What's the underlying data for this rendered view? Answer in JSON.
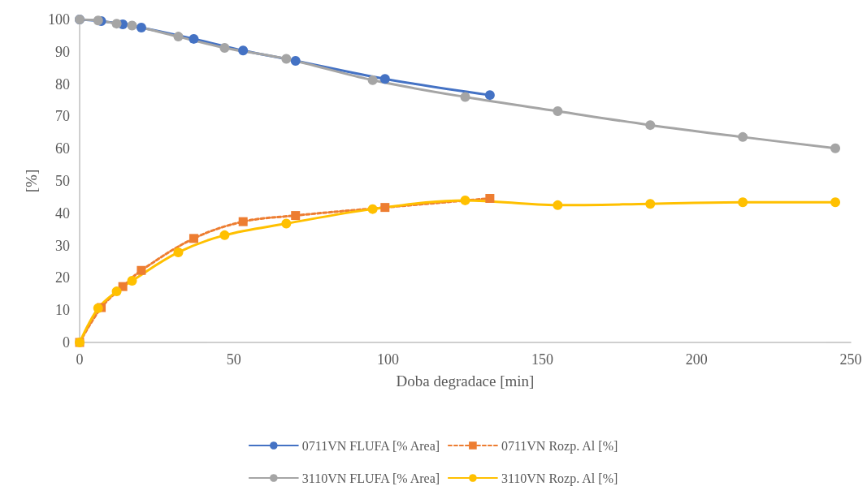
{
  "chart_data": {
    "type": "line",
    "xlabel": "Doba degradace [min]",
    "ylabel": "[%]",
    "xlim": [
      0,
      250
    ],
    "xticks": [
      0,
      50,
      100,
      150,
      200,
      250
    ],
    "ylim": [
      0,
      100
    ],
    "yticks": [
      0,
      10,
      20,
      30,
      40,
      50,
      60,
      70,
      80,
      90,
      100
    ],
    "grid": false,
    "legend": "bottom",
    "series": [
      {
        "name": "0711VN FLUFA [% Area]",
        "color": "#4472c4",
        "marker": "circle",
        "line_style": "solid",
        "x": [
          0,
          7,
          14,
          20,
          37,
          53,
          70,
          99,
          133
        ],
        "values": [
          100,
          99.5,
          98.5,
          97.5,
          94,
          90.4,
          87.2,
          81.6,
          76.6
        ]
      },
      {
        "name": "0711VN Rozp. Al [%]",
        "color": "#ed7d31",
        "marker": "square",
        "line_style": "dashed",
        "x": [
          0,
          7,
          14,
          20,
          37,
          53,
          70,
          99,
          133
        ],
        "values": [
          0,
          10.8,
          17.3,
          22.3,
          32.2,
          37.4,
          39.3,
          41.8,
          44.6
        ]
      },
      {
        "name": "3110VN FLUFA [% Area]",
        "color": "#a5a5a5",
        "marker": "circle",
        "line_style": "solid",
        "x": [
          0,
          6,
          12,
          17,
          32,
          47,
          67,
          95,
          125,
          155,
          185,
          215,
          245
        ],
        "values": [
          100,
          99.7,
          98.7,
          98.1,
          94.7,
          91.2,
          87.8,
          81.2,
          76,
          71.6,
          67.3,
          63.6,
          60.1
        ]
      },
      {
        "name": "3110VN Rozp. Al [%]",
        "color": "#ffc000",
        "marker": "circle",
        "line_style": "solid",
        "x": [
          0,
          6,
          12,
          17,
          32,
          47,
          67,
          95,
          125,
          155,
          185,
          215,
          245
        ],
        "values": [
          0,
          10.6,
          15.8,
          19.1,
          27.9,
          33.2,
          36.8,
          41.3,
          44,
          42.5,
          42.9,
          43.4,
          43.4
        ]
      }
    ]
  }
}
